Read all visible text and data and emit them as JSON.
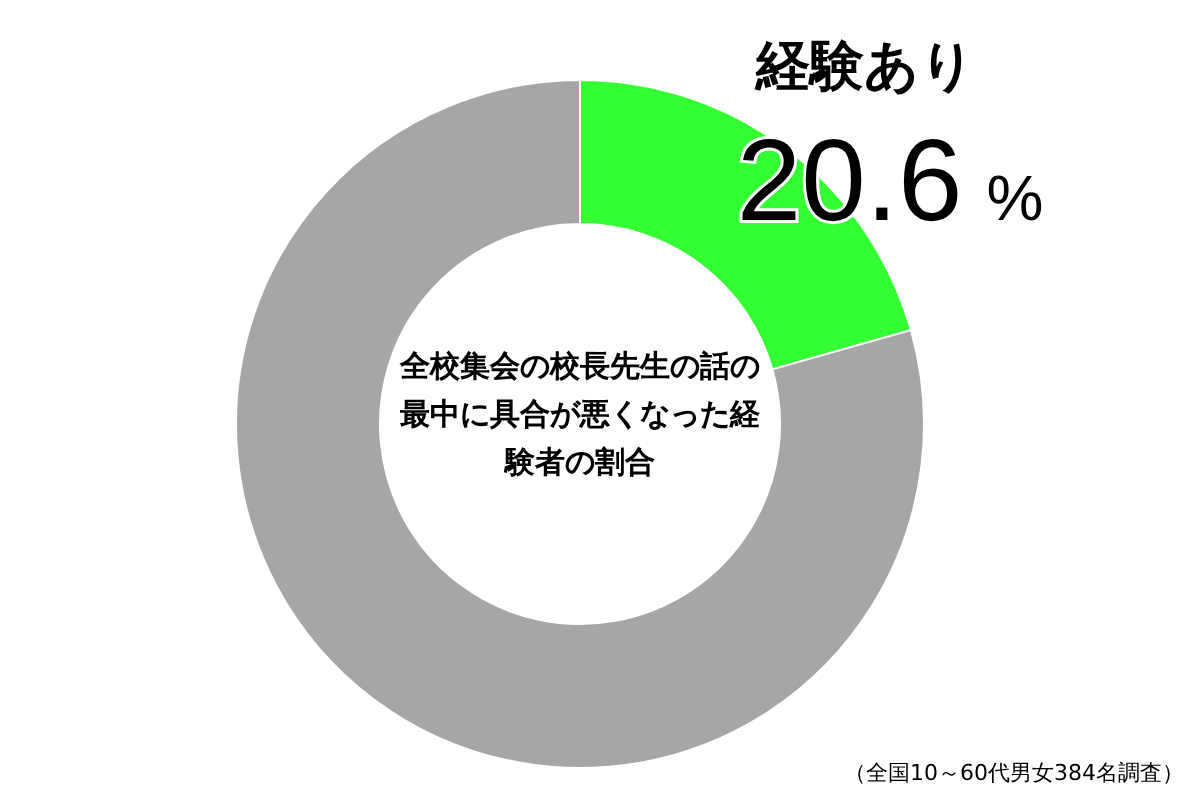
{
  "chart_data": {
    "type": "donut",
    "title": "全校集会の校長先生の話の最中に具合が悪くなった経験者の割合",
    "categories": [
      "経験あり",
      null
    ],
    "values": [
      20.6,
      79.4
    ],
    "colors": [
      "#33ff33",
      "#a6a6a6"
    ],
    "value_labels": [
      "20.6 %",
      null
    ],
    "annotations": [
      "（全国10～60代男女384名調査）"
    ]
  }
}
